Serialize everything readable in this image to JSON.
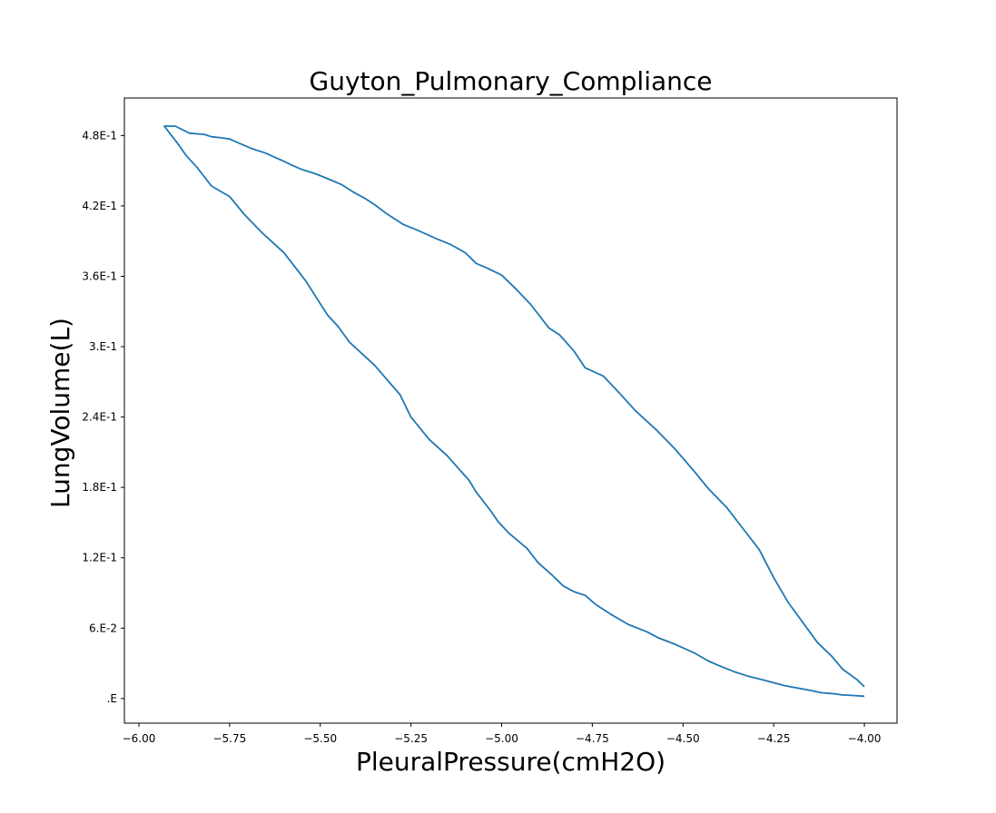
{
  "chart_data": {
    "type": "line",
    "title": "Guyton_Pulmonary_Compliance",
    "xlabel": "PleuralPressure(cmH2O)",
    "ylabel": "LungVolume(L)",
    "xlim": [
      -6.04,
      -3.91
    ],
    "ylim": [
      -0.021,
      0.512
    ],
    "x_ticks": [
      -6.0,
      -5.75,
      -5.5,
      -5.25,
      -5.0,
      -4.75,
      -4.5,
      -4.25,
      -4.0
    ],
    "x_tick_labels": [
      "−6.00",
      "−5.75",
      "−5.50",
      "−5.25",
      "−5.00",
      "−4.75",
      "−4.50",
      "−4.25",
      "−4.00"
    ],
    "y_ticks": [
      0,
      0.06,
      0.12,
      0.18,
      0.24,
      0.3,
      0.36,
      0.42,
      0.48
    ],
    "y_tick_labels": [
      ".E",
      "6.E-2",
      "1.2E-1",
      "1.8E-1",
      "2.4E-1",
      "3.E-1",
      "3.6E-1",
      "4.2E-1",
      "4.8E-1"
    ],
    "grid": false,
    "legend": false,
    "series": [
      {
        "color": "#1f77b4",
        "x": [
          -4.0,
          -4.02,
          -4.06,
          -4.09,
          -4.13,
          -4.17,
          -4.21,
          -4.25,
          -4.29,
          -4.33,
          -4.38,
          -4.43,
          -4.47,
          -4.52,
          -4.57,
          -4.63,
          -4.68,
          -4.72,
          -4.77,
          -4.8,
          -4.84,
          -4.87,
          -4.92,
          -4.96,
          -5.0,
          -5.04,
          -5.07,
          -5.1,
          -5.14,
          -5.18,
          -5.23,
          -5.27,
          -5.32,
          -5.35,
          -5.38,
          -5.41,
          -5.44,
          -5.47,
          -5.51,
          -5.53,
          -5.55,
          -5.58,
          -5.6,
          -5.63,
          -5.65,
          -5.67,
          -5.69,
          -5.72,
          -5.75,
          -5.77,
          -5.8,
          -5.82,
          -5.86,
          -5.9,
          -5.93,
          -5.89,
          -5.87,
          -5.84,
          -5.8,
          -5.75,
          -5.71,
          -5.66,
          -5.6,
          -5.54,
          -5.48,
          -5.45,
          -5.42,
          -5.35,
          -5.28,
          -5.25,
          -5.2,
          -5.15,
          -5.11,
          -5.09,
          -5.07,
          -5.03,
          -5.01,
          -4.98,
          -4.93,
          -4.9,
          -4.86,
          -4.83,
          -4.8,
          -4.77,
          -4.74,
          -4.7,
          -4.65,
          -4.6,
          -4.57,
          -4.52,
          -4.47,
          -4.43,
          -4.4,
          -4.36,
          -4.32,
          -4.28,
          -4.22,
          -4.15,
          -4.12,
          -4.08,
          -4.06,
          -4.05,
          -4.0
        ],
        "y": [
          0.01,
          0.016,
          0.025,
          0.036,
          0.048,
          0.065,
          0.082,
          0.103,
          0.127,
          0.143,
          0.163,
          0.179,
          0.194,
          0.212,
          0.228,
          0.245,
          0.262,
          0.275,
          0.282,
          0.296,
          0.31,
          0.316,
          0.336,
          0.349,
          0.361,
          0.367,
          0.371,
          0.38,
          0.387,
          0.392,
          0.399,
          0.404,
          0.414,
          0.421,
          0.427,
          0.432,
          0.438,
          0.442,
          0.447,
          0.449,
          0.451,
          0.455,
          0.458,
          0.462,
          0.465,
          0.467,
          0.469,
          0.473,
          0.477,
          0.478,
          0.479,
          0.481,
          0.482,
          0.488,
          0.488,
          0.472,
          0.463,
          0.453,
          0.437,
          0.428,
          0.413,
          0.397,
          0.38,
          0.356,
          0.327,
          0.317,
          0.304,
          0.284,
          0.259,
          0.24,
          0.221,
          0.207,
          0.193,
          0.186,
          0.176,
          0.16,
          0.151,
          0.141,
          0.128,
          0.116,
          0.105,
          0.096,
          0.091,
          0.088,
          0.08,
          0.072,
          0.063,
          0.057,
          0.052,
          0.046,
          0.039,
          0.032,
          0.028,
          0.023,
          0.019,
          0.016,
          0.011,
          0.007,
          0.005,
          0.004,
          0.003,
          0.003,
          0.002
        ]
      }
    ]
  }
}
